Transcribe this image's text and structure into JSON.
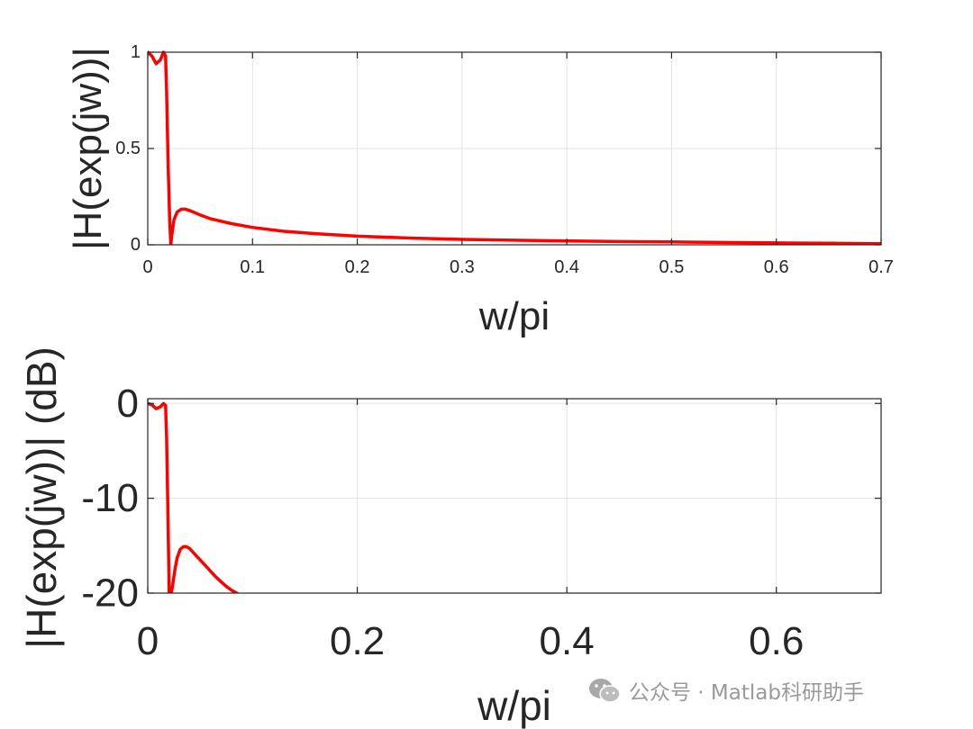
{
  "chart_data": [
    {
      "type": "line",
      "title": "",
      "xlabel": "w/pi",
      "ylabel": "|H(exp(jw))|",
      "xlim": [
        0,
        0.7
      ],
      "ylim": [
        0,
        1
      ],
      "xticks": [
        "0",
        "0.1",
        "0.2",
        "0.3",
        "0.4",
        "0.5",
        "0.6",
        "0.7"
      ],
      "yticks": [
        "0",
        "0.5",
        "1"
      ],
      "grid": true,
      "series": [
        {
          "color": "#ff0000",
          "x": [
            0,
            0.004,
            0.008,
            0.012,
            0.015,
            0.017,
            0.018,
            0.0195,
            0.021,
            0.022,
            0.023,
            0.025,
            0.028,
            0.032,
            0.036,
            0.04,
            0.05,
            0.06,
            0.08,
            0.1,
            0.13,
            0.16,
            0.2,
            0.25,
            0.3,
            0.35,
            0.4,
            0.45,
            0.5,
            0.55,
            0.6,
            0.65,
            0.7
          ],
          "y": [
            1.0,
            0.98,
            0.94,
            0.96,
            1.0,
            0.98,
            0.8,
            0.4,
            0.12,
            0.0,
            0.05,
            0.13,
            0.17,
            0.185,
            0.185,
            0.178,
            0.155,
            0.135,
            0.11,
            0.09,
            0.07,
            0.058,
            0.045,
            0.035,
            0.028,
            0.024,
            0.02,
            0.017,
            0.015,
            0.012,
            0.01,
            0.008,
            0.006
          ]
        }
      ]
    },
    {
      "type": "line",
      "title": "",
      "xlabel": "w/pi",
      "ylabel": "|H(exp(jw))| (dB)",
      "xlim": [
        0,
        0.7
      ],
      "ylim": [
        -20,
        0.5
      ],
      "xticks": [
        "0",
        "0.2",
        "0.4",
        "0.6"
      ],
      "yticks": [
        "0",
        "-10",
        "-20"
      ],
      "grid": true,
      "series": [
        {
          "color": "#ff0000",
          "x": [
            0,
            0.004,
            0.008,
            0.012,
            0.015,
            0.017,
            0.018,
            0.019,
            0.02,
            0.0205,
            0.021,
            0.0225,
            0.024,
            0.026,
            0.028,
            0.031,
            0.034,
            0.037,
            0.04,
            0.045,
            0.05,
            0.055,
            0.06,
            0.065,
            0.07,
            0.075,
            0.08,
            0.085
          ],
          "y": [
            0,
            -0.15,
            -0.55,
            -0.35,
            0,
            -0.2,
            -3.5,
            -10,
            -17,
            -20,
            -20,
            -20,
            -19,
            -17.5,
            -16.3,
            -15.4,
            -15.1,
            -15.1,
            -15.3,
            -15.9,
            -16.5,
            -17.1,
            -17.7,
            -18.3,
            -18.8,
            -19.3,
            -19.7,
            -20
          ]
        }
      ]
    }
  ],
  "watermark": {
    "icon": "wechat-icon",
    "text": "公众号 · Matlab科研助手"
  }
}
